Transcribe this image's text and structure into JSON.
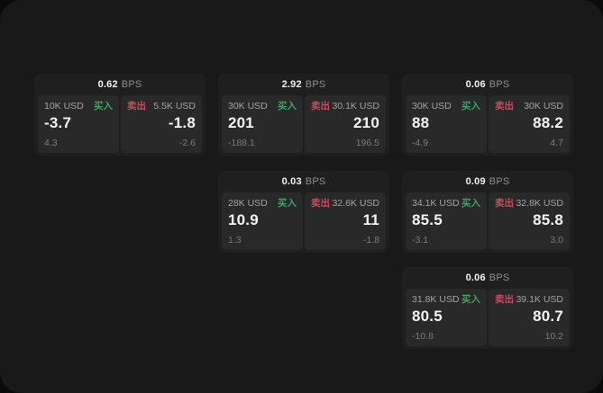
{
  "labels": {
    "buy": "买入",
    "sell": "卖出",
    "bps_unit": "BPS"
  },
  "colors": {
    "outer_background": "#0b0b0c",
    "window_background": "#19191a",
    "card_background": "#1f1f20",
    "panel_background": "#29292a",
    "buy_green": "#3fa463",
    "sell_red": "#c74e5e",
    "text_primary": "#f2f2f2",
    "text_secondary": "#a3a3a4",
    "text_muted": "#7b7b7c"
  },
  "cards": [
    {
      "bps": "0.62",
      "buy": {
        "amount": "10K USD",
        "value": "-3.7",
        "sub": "4.3"
      },
      "sell": {
        "amount": "5.5K USD",
        "value": "-1.8",
        "sub": "-2.6"
      }
    },
    {
      "bps": "2.92",
      "buy": {
        "amount": "30K USD",
        "value": "201",
        "sub": "-188.1"
      },
      "sell": {
        "amount": "30.1K USD",
        "value": "210",
        "sub": "196.5"
      }
    },
    {
      "bps": "0.06",
      "buy": {
        "amount": "30K USD",
        "value": "88",
        "sub": "-4.9"
      },
      "sell": {
        "amount": "30K USD",
        "value": "88.2",
        "sub": "4.7"
      }
    },
    {
      "bps": "0.03",
      "buy": {
        "amount": "28K USD",
        "value": "10.9",
        "sub": "1.3"
      },
      "sell": {
        "amount": "32.6K USD",
        "value": "11",
        "sub": "-1.8"
      }
    },
    {
      "bps": "0.09",
      "buy": {
        "amount": "34.1K USD",
        "value": "85.5",
        "sub": "-3.1"
      },
      "sell": {
        "amount": "32.8K USD",
        "value": "85.8",
        "sub": "3.0"
      }
    },
    {
      "bps": "0.06",
      "buy": {
        "amount": "31.8K USD",
        "value": "80.5",
        "sub": "-10.8"
      },
      "sell": {
        "amount": "39.1K USD",
        "value": "80.7",
        "sub": "10.2"
      }
    }
  ]
}
